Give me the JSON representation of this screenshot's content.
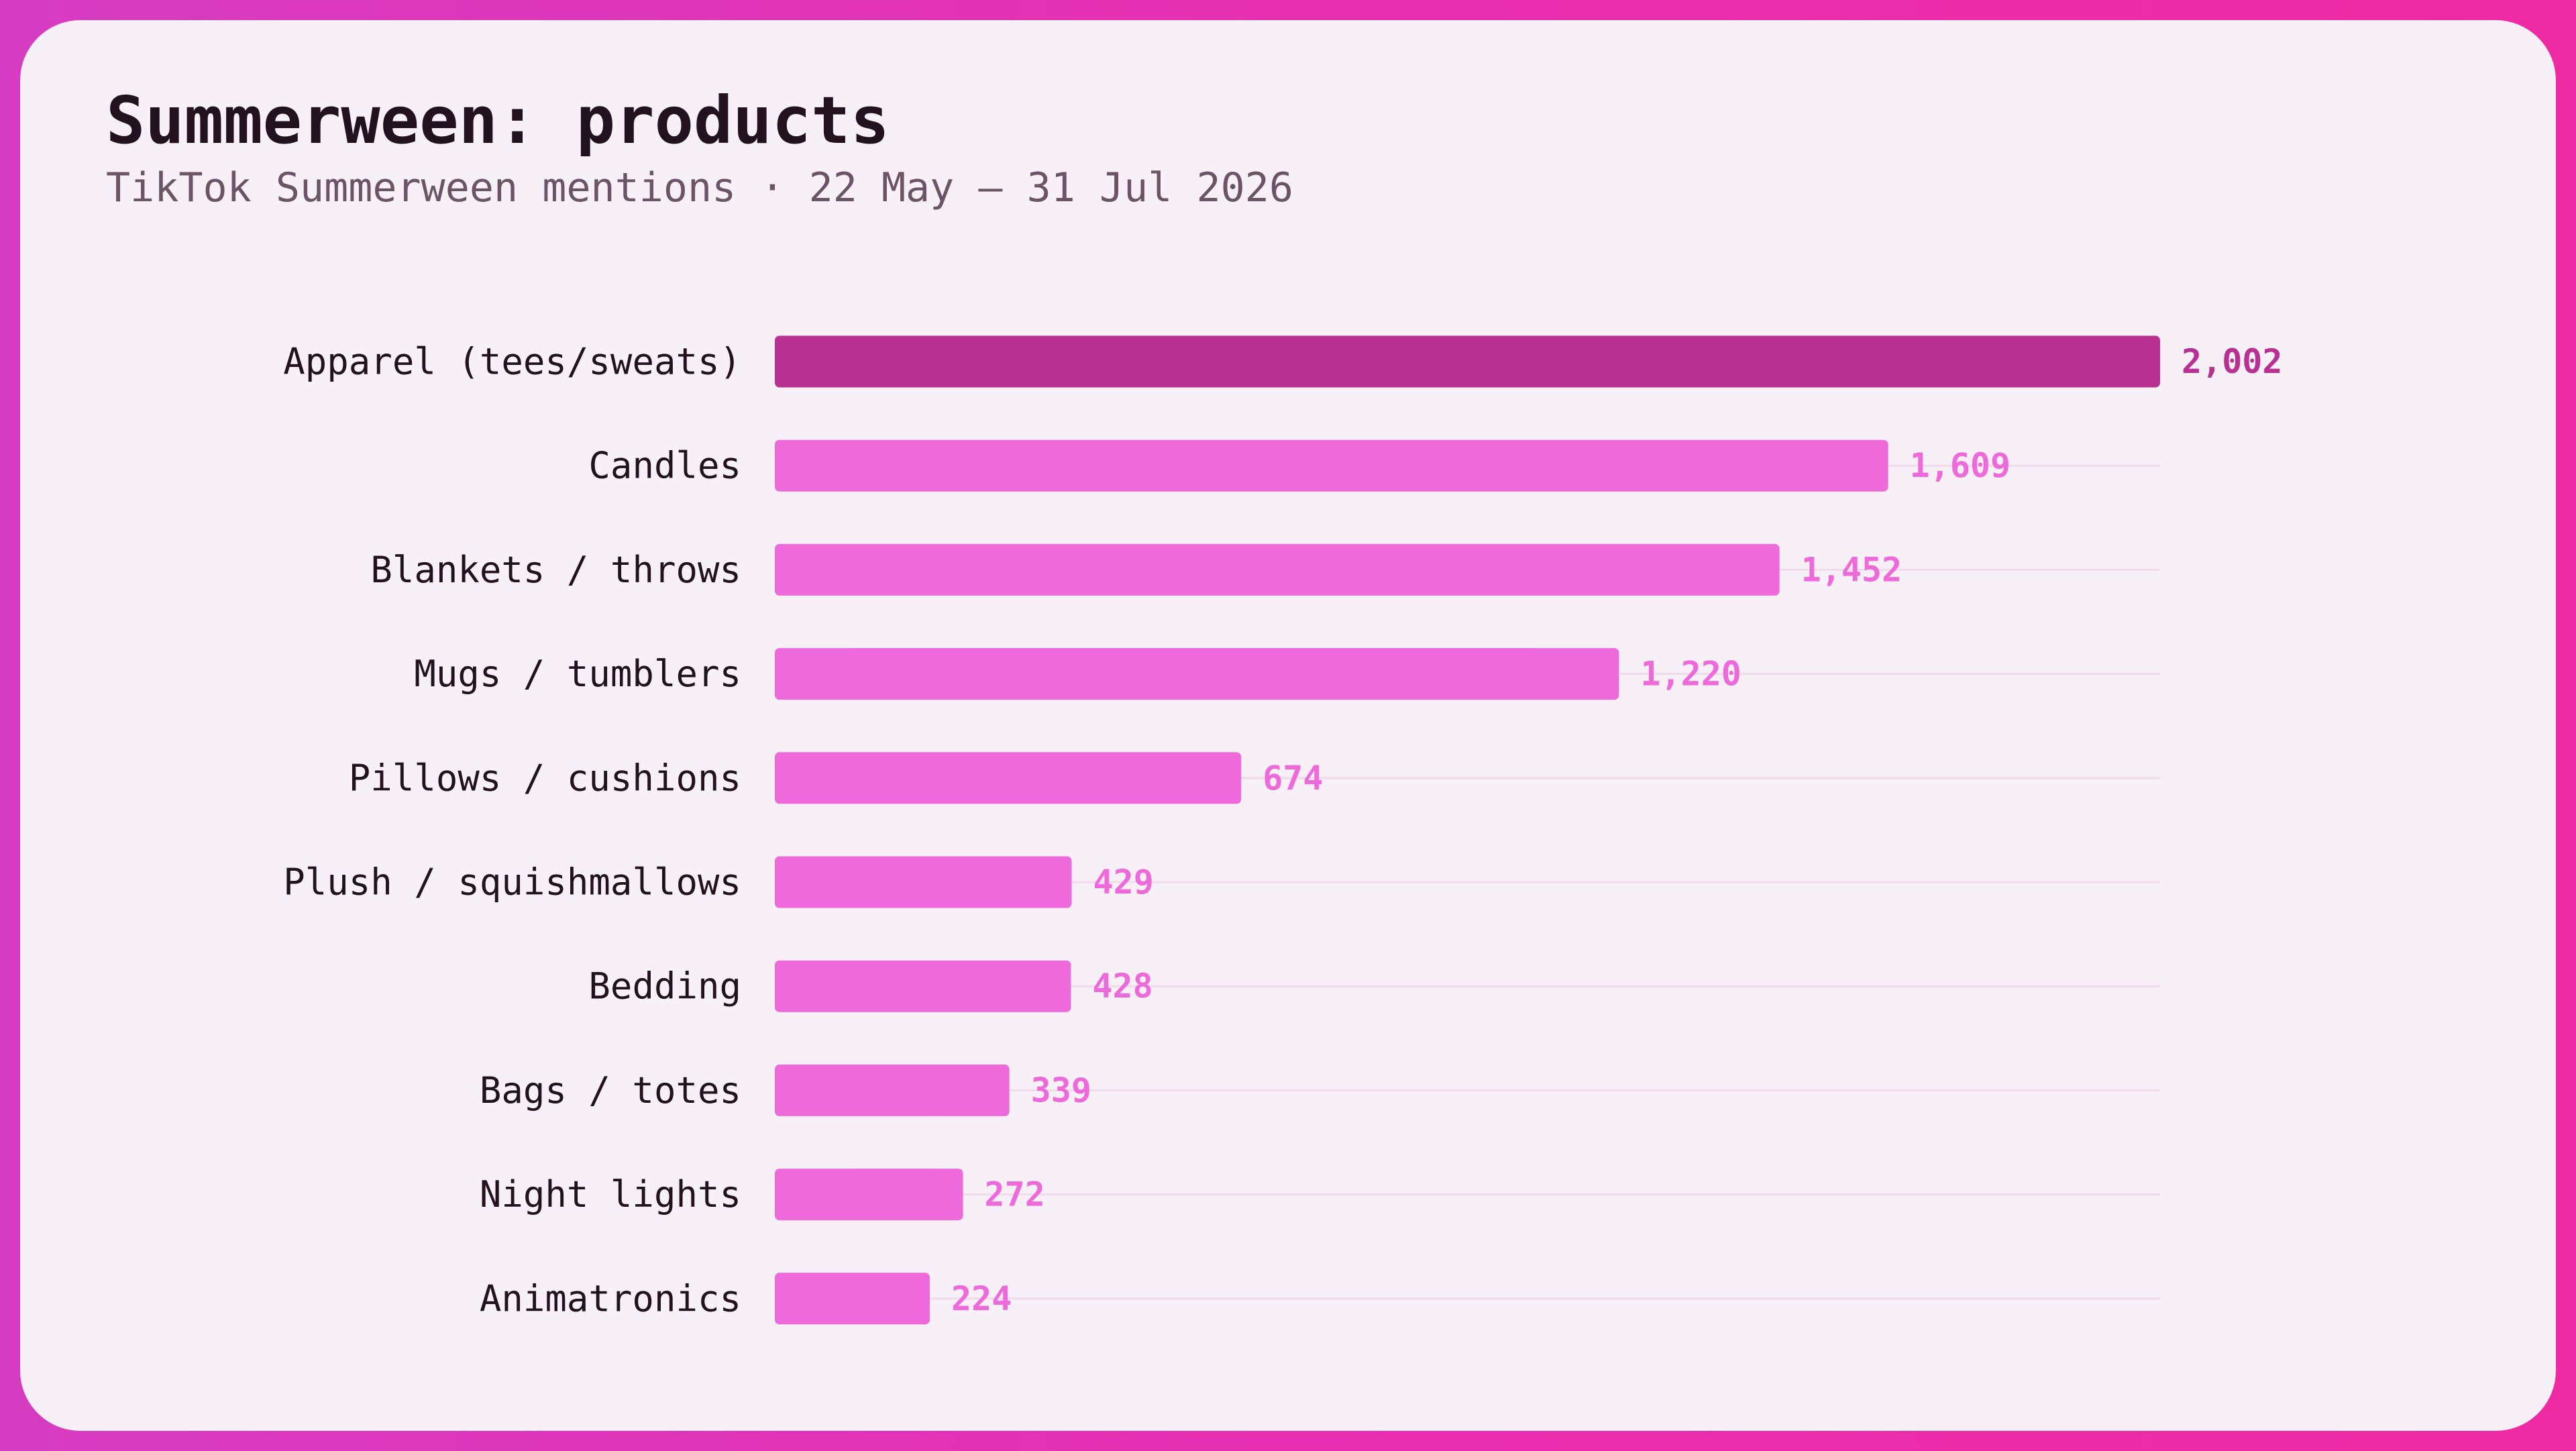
{
  "colors": {
    "frame": "#e62fb0",
    "card_background": "#f8f0f7",
    "bar_highlight": "#b83092",
    "bar_default": "#ee69da",
    "label_text": "#22121f",
    "gridline": "#efdcea"
  },
  "chart_data": {
    "type": "bar",
    "orientation": "horizontal",
    "title": "Summerween: products",
    "subtitle": "TikTok Summerween mentions · 22 May – 31 Jul 2026",
    "categories": [
      "Apparel (tees/sweats)",
      "Candles",
      "Blankets / throws",
      "Mugs / tumblers",
      "Pillows / cushions",
      "Plush / squishmallows",
      "Bedding",
      "Bags / totes",
      "Night lights",
      "Animatronics"
    ],
    "values": [
      2002,
      1609,
      1452,
      1220,
      674,
      429,
      428,
      339,
      272,
      224
    ],
    "value_labels": [
      "2,002",
      "1,609",
      "1,452",
      "1,220",
      "674",
      "429",
      "428",
      "339",
      "272",
      "224"
    ],
    "highlighted_category": "Apparel (tees/sweats)",
    "xlim": [
      0,
      2002
    ],
    "grid": false,
    "legend": "none"
  }
}
